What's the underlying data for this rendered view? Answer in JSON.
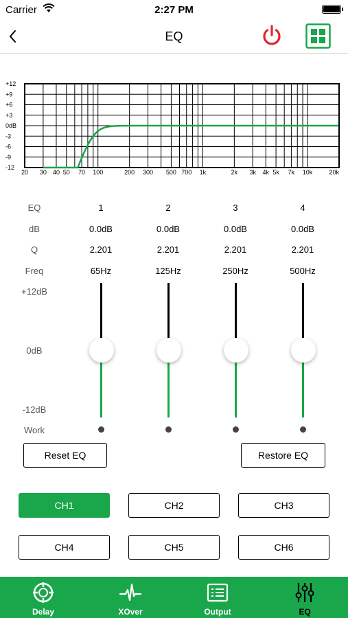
{
  "status_bar": {
    "carrier": "Carrier",
    "time": "2:27 PM"
  },
  "nav": {
    "title": "EQ"
  },
  "graph": {
    "y_labels": [
      "+12",
      "+9",
      "+6",
      "+3",
      "0dB",
      "-3",
      "-6",
      "-9",
      "-12"
    ],
    "x_labels": [
      "20",
      "30",
      "40",
      "50",
      "70",
      "100",
      "200",
      "300",
      "500",
      "700",
      "1k",
      "2k",
      "3k",
      "4k",
      "5k",
      "7k",
      "10k",
      "20k"
    ],
    "curve_color": "#1aa64a"
  },
  "table": {
    "labels": {
      "eq": "EQ",
      "db": "dB",
      "q": "Q",
      "freq": "Freq"
    },
    "bands": [
      {
        "number": "1",
        "db": "0.0dB",
        "q": "2.201",
        "freq": "65Hz"
      },
      {
        "number": "2",
        "db": "0.0dB",
        "q": "2.201",
        "freq": "125Hz"
      },
      {
        "number": "3",
        "db": "0.0dB",
        "q": "2.201",
        "freq": "250Hz"
      },
      {
        "number": "4",
        "db": "0.0dB",
        "q": "2.201",
        "freq": "500Hz"
      }
    ]
  },
  "sliders": {
    "max_label": "+12dB",
    "mid_label": "0dB",
    "min_label": "-12dB",
    "work_label": "Work",
    "range": [
      -12,
      12
    ]
  },
  "buttons": {
    "reset": "Reset EQ",
    "restore": "Restore EQ"
  },
  "channels": [
    {
      "label": "CH1",
      "active": true
    },
    {
      "label": "CH2",
      "active": false
    },
    {
      "label": "CH3",
      "active": false
    },
    {
      "label": "CH4",
      "active": false
    },
    {
      "label": "CH5",
      "active": false
    },
    {
      "label": "CH6",
      "active": false
    }
  ],
  "tabs": [
    {
      "label": "Delay",
      "icon": "delay-icon"
    },
    {
      "label": "XOver",
      "icon": "xover-icon"
    },
    {
      "label": "Output",
      "icon": "output-icon"
    },
    {
      "label": "EQ",
      "icon": "eq-sliders-icon"
    }
  ],
  "colors": {
    "accent": "#1aa64a",
    "power": "#e02828"
  }
}
